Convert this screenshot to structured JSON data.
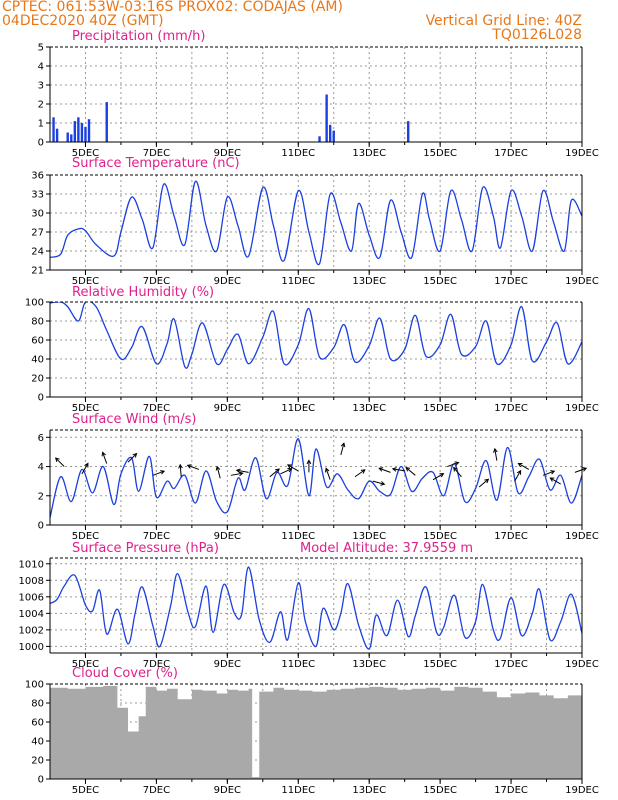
{
  "header": {
    "line1": "CPTEC:   061:53W-03:16S   PROX02: CODAJAS (AM)",
    "line2_left": "04DEC2020 40Z (GMT)",
    "line2_right": "Vertical Grid Line: 40Z",
    "line3_right": "TQ0126L028"
  },
  "colors": {
    "header": "#e8771a",
    "title": "#e0208c",
    "series": "#1b3fe0",
    "cloud": "#a9a9a9"
  },
  "x_ticks": [
    "5DEC",
    "7DEC",
    "9DEC",
    "11DEC",
    "13DEC",
    "15DEC",
    "17DEC",
    "19DEC"
  ],
  "chart_data": [
    {
      "type": "bar",
      "title": "Precipitation (mm/h)",
      "ylim": [
        0,
        5
      ],
      "yticks": [
        "0",
        "1",
        "2",
        "3",
        "4",
        "5"
      ],
      "x": [
        4.1,
        4.2,
        4.5,
        4.6,
        4.7,
        4.8,
        4.9,
        5.0,
        5.1,
        5.6,
        11.6,
        11.8,
        11.9,
        12.0,
        14.1
      ],
      "values": [
        1.3,
        0.7,
        0.5,
        0.4,
        1.1,
        1.3,
        1.0,
        0.8,
        1.2,
        2.1,
        0.3,
        2.5,
        0.9,
        0.6,
        1.1
      ]
    },
    {
      "type": "line",
      "title": "Surface Temperature (nC)",
      "ylim": [
        21,
        36
      ],
      "yticks": [
        "21",
        "24",
        "27",
        "30",
        "33",
        "36"
      ],
      "x": [
        4.0,
        4.3,
        4.5,
        4.8,
        5.0,
        5.3,
        5.8,
        6.0,
        6.3,
        6.6,
        6.9,
        7.2,
        7.5,
        7.8,
        8.1,
        8.4,
        8.7,
        9.0,
        9.3,
        9.6,
        10.0,
        10.3,
        10.6,
        11.0,
        11.3,
        11.6,
        11.9,
        12.2,
        12.5,
        12.7,
        13.0,
        13.3,
        13.6,
        13.9,
        14.2,
        14.5,
        14.7,
        15.0,
        15.3,
        15.6,
        15.9,
        16.2,
        16.5,
        16.7,
        17.0,
        17.3,
        17.6,
        17.9,
        18.2,
        18.5,
        18.7,
        19.0
      ],
      "values": [
        23.0,
        23.5,
        26.5,
        27.5,
        27.2,
        25.0,
        23.2,
        27.0,
        32.5,
        29.0,
        24.5,
        34.5,
        29.5,
        25.0,
        35.0,
        28.0,
        24.0,
        32.5,
        28.0,
        23.2,
        34.0,
        28.0,
        22.5,
        33.5,
        27.0,
        22.0,
        33.0,
        28.5,
        24.0,
        31.5,
        26.5,
        23.0,
        32.0,
        27.0,
        23.0,
        33.0,
        29.0,
        24.0,
        33.5,
        29.0,
        24.0,
        34.0,
        29.5,
        24.5,
        33.5,
        29.5,
        24.0,
        33.5,
        28.5,
        24.0,
        32.0,
        29.5
      ]
    },
    {
      "type": "line",
      "title": "Relative Humidity (%)",
      "ylim": [
        0,
        100
      ],
      "yticks": [
        "0",
        "20",
        "40",
        "60",
        "80",
        "100"
      ],
      "x": [
        4.0,
        4.3,
        4.5,
        4.8,
        5.0,
        5.3,
        5.6,
        6.0,
        6.3,
        6.6,
        7.0,
        7.3,
        7.5,
        7.8,
        8.0,
        8.3,
        8.7,
        9.0,
        9.3,
        9.6,
        10.0,
        10.3,
        10.6,
        11.0,
        11.3,
        11.6,
        12.0,
        12.3,
        12.6,
        13.0,
        13.3,
        13.6,
        14.0,
        14.3,
        14.6,
        15.0,
        15.3,
        15.6,
        16.0,
        16.3,
        16.6,
        17.0,
        17.3,
        17.6,
        18.0,
        18.3,
        18.6,
        19.0
      ],
      "values": [
        99,
        100,
        95,
        80,
        100,
        95,
        70,
        40,
        52,
        74,
        35,
        56,
        82,
        32,
        45,
        78,
        35,
        50,
        66,
        35,
        63,
        90,
        35,
        55,
        93,
        42,
        52,
        76,
        37,
        54,
        83,
        40,
        50,
        86,
        43,
        55,
        87,
        45,
        53,
        80,
        35,
        55,
        95,
        38,
        58,
        78,
        35,
        58
      ]
    },
    {
      "type": "line",
      "title": "Surface Wind (m/s)",
      "ylim": [
        0,
        6.5
      ],
      "yticks": [
        "0",
        "2",
        "4",
        "6"
      ],
      "x": [
        4.0,
        4.3,
        4.6,
        4.9,
        5.2,
        5.5,
        5.8,
        6.0,
        6.3,
        6.5,
        6.8,
        7.0,
        7.3,
        7.5,
        7.8,
        8.1,
        8.4,
        8.7,
        9.0,
        9.3,
        9.5,
        9.8,
        10.1,
        10.4,
        10.7,
        11.0,
        11.3,
        11.5,
        11.8,
        12.1,
        12.4,
        12.7,
        13.0,
        13.3,
        13.6,
        13.9,
        14.2,
        14.5,
        14.8,
        15.1,
        15.4,
        15.7,
        16.0,
        16.3,
        16.6,
        16.9,
        17.2,
        17.5,
        17.8,
        18.1,
        18.4,
        18.7,
        19.0
      ],
      "values": [
        0.5,
        3.3,
        1.6,
        3.8,
        2.2,
        4.0,
        1.4,
        3.5,
        4.6,
        2.3,
        4.7,
        1.9,
        3.0,
        2.5,
        3.4,
        1.5,
        3.7,
        1.6,
        0.9,
        3.2,
        2.4,
        4.6,
        1.8,
        3.6,
        2.7,
        5.9,
        2.0,
        5.2,
        2.6,
        3.5,
        2.4,
        1.8,
        3.0,
        2.3,
        2.1,
        4.0,
        2.3,
        3.2,
        3.6,
        2.0,
        4.2,
        1.6,
        2.5,
        4.4,
        1.7,
        5.3,
        2.2,
        3.3,
        4.5,
        2.4,
        3.4,
        1.5,
        3.4
      ],
      "arrows": {
        "x": [
          4.4,
          4.9,
          5.6,
          6.2,
          6.9,
          7.7,
          8.2,
          8.8,
          9.1,
          9.6,
          10.2,
          10.5,
          11.0,
          11.3,
          11.9,
          12.2,
          12.6,
          13.1,
          13.6,
          14.0,
          14.3,
          14.8,
          15.2,
          15.6,
          16.1,
          16.6,
          17.1,
          17.5,
          17.9,
          18.4,
          18.8
        ],
        "dir": [
          -135,
          -60,
          -110,
          -45,
          -20,
          -95,
          -160,
          -105,
          -10,
          -170,
          -40,
          -25,
          -150,
          -90,
          -110,
          -75,
          -35,
          15,
          -160,
          -170,
          -140,
          -30,
          -20,
          -130,
          -40,
          -100,
          -60,
          -150,
          -20,
          -150,
          -20
        ],
        "spd": [
          4.0,
          3.5,
          4.2,
          4.3,
          3.4,
          3.3,
          3.8,
          3.2,
          3.4,
          3.6,
          3.3,
          3.5,
          3.7,
          3.6,
          3.1,
          4.8,
          3.3,
          3.0,
          3.6,
          3.7,
          3.4,
          3.1,
          4.0,
          3.3,
          2.6,
          4.4,
          3.0,
          3.8,
          3.4,
          2.8,
          3.6
        ]
      }
    },
    {
      "type": "line",
      "title": "Surface Pressure (hPa)",
      "subtitle": "Model Altitude: 37.9559 m",
      "ylim": [
        999.2,
        1010.7
      ],
      "yticks": [
        "1000",
        "1002",
        "1004",
        "1006",
        "1008",
        "1010"
      ],
      "x": [
        4.0,
        4.2,
        4.4,
        4.7,
        5.0,
        5.2,
        5.4,
        5.6,
        5.9,
        6.2,
        6.4,
        6.6,
        6.9,
        7.1,
        7.4,
        7.6,
        7.9,
        8.1,
        8.4,
        8.6,
        8.9,
        9.2,
        9.4,
        9.6,
        9.9,
        10.2,
        10.5,
        10.7,
        11.0,
        11.2,
        11.5,
        11.7,
        12.0,
        12.2,
        12.4,
        12.7,
        13.0,
        13.2,
        13.5,
        13.8,
        14.1,
        14.3,
        14.6,
        14.9,
        15.1,
        15.4,
        15.7,
        16.0,
        16.2,
        16.5,
        16.7,
        17.0,
        17.3,
        17.6,
        17.8,
        18.1,
        18.4,
        18.7,
        19.0
      ],
      "values": [
        1005.2,
        1005.7,
        1007.3,
        1008.6,
        1005.0,
        1004.3,
        1006.8,
        1001.5,
        1004.5,
        1000.3,
        1004.0,
        1007.2,
        1002.5,
        1000.0,
        1004.9,
        1008.8,
        1004.0,
        1002.4,
        1007.3,
        1001.7,
        1007.5,
        1004.0,
        1003.8,
        1009.6,
        1003.2,
        1000.5,
        1004.2,
        1000.8,
        1007.7,
        1003.0,
        1000.0,
        1004.6,
        1002.0,
        1004.0,
        1007.6,
        1002.6,
        999.7,
        1003.8,
        1001.3,
        1005.6,
        1001.2,
        1003.7,
        1007.2,
        1001.7,
        1002.3,
        1006.2,
        1001.1,
        1003.0,
        1007.5,
        1002.0,
        1001.0,
        1005.9,
        1001.3,
        1004.0,
        1006.9,
        1000.8,
        1003.0,
        1006.3,
        1001.6
      ]
    },
    {
      "type": "bar",
      "title": "Cloud Cover (%)",
      "ylim": [
        0,
        100
      ],
      "yticks": [
        "0",
        "20",
        "40",
        "60",
        "80",
        "100"
      ],
      "x": [
        4.0,
        4.5,
        5.0,
        5.5,
        5.9,
        6.2,
        6.5,
        6.7,
        7.0,
        7.3,
        7.6,
        8.0,
        8.3,
        8.7,
        9.0,
        9.3,
        9.6,
        9.7,
        9.9,
        10.3,
        10.6,
        11.0,
        11.4,
        11.8,
        12.2,
        12.6,
        13.0,
        13.4,
        13.8,
        14.2,
        14.6,
        15.0,
        15.4,
        15.8,
        16.2,
        16.6,
        17.0,
        17.4,
        17.8,
        18.2,
        18.6,
        19.0
      ],
      "values": [
        96,
        95,
        97,
        98,
        75,
        50,
        66,
        97,
        93,
        95,
        84,
        94,
        93,
        90,
        94,
        93,
        95,
        2,
        92,
        96,
        94,
        93,
        92,
        94,
        95,
        96,
        97,
        96,
        94,
        95,
        96,
        93,
        97,
        96,
        92,
        86,
        90,
        91,
        88,
        85,
        88,
        84
      ]
    }
  ]
}
